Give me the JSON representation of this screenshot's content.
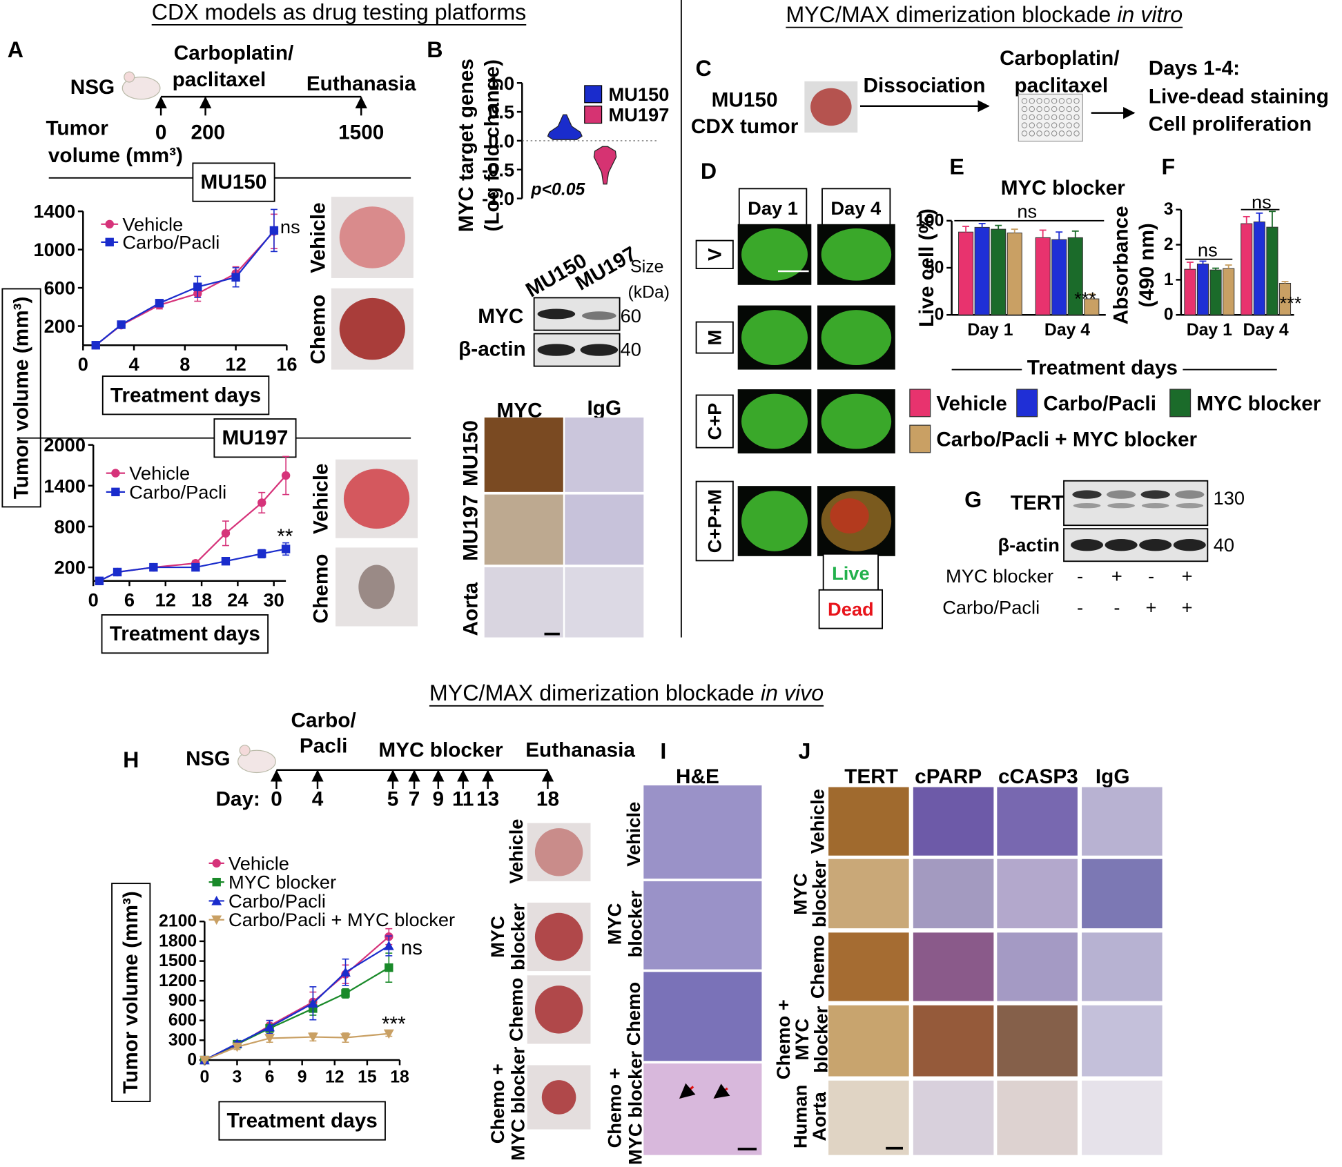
{
  "headers": [
    {
      "text": "CDX models as drug testing platforms"
    },
    {
      "text": "MYC/MAX dimerization blockade ",
      "emphasis": "in vitro"
    },
    {
      "text": "MYC/MAX dimerization blockade ",
      "emphasis": "in vivo"
    }
  ],
  "panel_letters": [
    "A",
    "B",
    "C",
    "D",
    "E",
    "F",
    "G",
    "H",
    "I",
    "J"
  ],
  "panel_a": {
    "mouse": "NSG",
    "drug": [
      "Carboplatin/",
      "paclitaxel"
    ],
    "end": "Euthanasia",
    "volume_label": [
      "Tumor",
      "volume (mm³)"
    ],
    "volumes": [
      0,
      200,
      1500
    ],
    "photo_labels": [
      [
        "Vehicle",
        "Chemo"
      ],
      [
        "Vehicle",
        "Chemo"
      ]
    ]
  },
  "panel_b": {
    "blot_lanes": [
      "MU150",
      "MU197"
    ],
    "size_label": [
      "Size",
      "(kDa)"
    ],
    "blot_rows": [
      "MYC",
      "β-actin"
    ],
    "sizes": [
      60,
      40
    ],
    "ihc_columns": [
      "MYC",
      "IgG"
    ],
    "ihc_rows": [
      "MU150",
      "MU197",
      "Aorta"
    ]
  },
  "panel_c": {
    "source": [
      "MU150",
      "CDX tumor"
    ],
    "step": "Dissociation",
    "drug": [
      "Carboplatin/",
      "paclitaxel"
    ],
    "readout": [
      "Days 1-4:",
      "Live-dead staining",
      "Cell proliferation"
    ]
  },
  "panel_d": {
    "columns": [
      "Day 1",
      "Day 4"
    ],
    "rows": [
      "V",
      "M",
      "C+P",
      "C+P+M"
    ],
    "stain": [
      "Live",
      "Dead"
    ]
  },
  "panel_g": {
    "rows": [
      "TERT",
      "β-actin"
    ],
    "sizes": [
      130,
      40
    ],
    "conditions": [
      {
        "name": "MYC blocker",
        "signs": [
          "-",
          "+",
          "-",
          "+"
        ]
      },
      {
        "name": "Carbo/Pacli",
        "signs": [
          "-",
          "-",
          "+",
          "+"
        ]
      }
    ]
  },
  "panel_h": {
    "mouse": "NSG",
    "drug": [
      "Carbo/",
      "Pacli"
    ],
    "blocker": "MYC blocker",
    "end": "Euthanasia",
    "day_label": "Day:",
    "days": [
      0,
      4,
      5,
      7,
      9,
      11,
      13,
      18
    ],
    "photo_labels": [
      [
        "Vehicle"
      ],
      [
        "MYC",
        "blocker"
      ],
      [
        "Chemo"
      ],
      [
        "Chemo +",
        "MYC blocker"
      ]
    ]
  },
  "panel_i": {
    "column": "H&E",
    "rows": [
      [
        "Vehicle"
      ],
      [
        "MYC",
        "blocker"
      ],
      [
        "Chemo"
      ],
      [
        "Chemo +",
        "MYC blocker"
      ]
    ]
  },
  "panel_j": {
    "columns": [
      "TERT",
      "cPARP",
      "cCASP3",
      "IgG"
    ],
    "rows": [
      [
        "Vehicle"
      ],
      [
        "MYC",
        "blocker"
      ],
      [
        "Chemo"
      ],
      [
        "Chemo +",
        "MYC",
        "blocker"
      ],
      [
        "Human",
        "Aorta"
      ]
    ]
  },
  "chart_data": [
    {
      "type": "line",
      "title": "MU150",
      "xlabel": "Treatment days",
      "ylabel": "Tumor volume (mm³)",
      "annotations": [
        "ns"
      ],
      "x": [
        1,
        3,
        6,
        9,
        12,
        15
      ],
      "xlim": [
        0,
        16
      ],
      "xticks": [
        0,
        4,
        8,
        12,
        16
      ],
      "ylim": [
        0,
        1400
      ],
      "yticks": [
        200,
        600,
        1000,
        1400
      ],
      "series": [
        {
          "name": "Vehicle",
          "color": "#d6337a",
          "marker": "circle",
          "values": [
            0,
            210,
            420,
            540,
            750,
            1190
          ],
          "errors": [
            0,
            20,
            40,
            80,
            70,
            180
          ]
        },
        {
          "name": "Carbo/Pacli",
          "color": "#1a2ccc",
          "marker": "square",
          "values": [
            0,
            215,
            440,
            610,
            710,
            1200
          ],
          "errors": [
            0,
            20,
            30,
            110,
            100,
            220
          ]
        }
      ]
    },
    {
      "type": "line",
      "title": "MU197",
      "xlabel": "Treatment days",
      "annotations": [
        "**"
      ],
      "x": [
        1,
        4,
        10,
        17,
        22,
        28,
        32
      ],
      "xlim": [
        0,
        32
      ],
      "xticks": [
        0,
        6,
        12,
        18,
        24,
        30
      ],
      "ylim": [
        0,
        2000
      ],
      "yticks": [
        200,
        800,
        1400,
        2000
      ],
      "series": [
        {
          "name": "Vehicle",
          "color": "#d6337a",
          "marker": "circle",
          "values": [
            0,
            130,
            200,
            260,
            700,
            1150,
            1550
          ],
          "errors": [
            0,
            20,
            20,
            40,
            180,
            150,
            280
          ]
        },
        {
          "name": "Carbo/Pacli",
          "color": "#1a2ccc",
          "marker": "square",
          "values": [
            0,
            130,
            200,
            200,
            290,
            400,
            470
          ],
          "errors": [
            0,
            20,
            20,
            20,
            30,
            60,
            90
          ]
        }
      ]
    },
    {
      "type": "violin",
      "ylabel": [
        "MYC target genes",
        "(Log fold change)"
      ],
      "annotations": [
        "p<0.05"
      ],
      "ylim": [
        -1,
        1
      ],
      "yticks": [
        {
          "value": 1,
          "label": "1.0"
        },
        {
          "value": 0.5,
          "label": "0.5"
        },
        {
          "value": 0,
          "label": "0.0"
        },
        {
          "value": -0.5,
          "label": "-0.5"
        },
        {
          "value": -1,
          "label": "-1.0"
        }
      ],
      "series": [
        {
          "name": "MU150",
          "color": "#1a2ccc"
        },
        {
          "name": "MU197",
          "color": "#d63372"
        }
      ]
    },
    {
      "type": "bar",
      "title": "MYC blocker",
      "xlabel": "Treatment days",
      "ylabel": [
        "Live cell (%)"
      ],
      "annotations": [
        "ns",
        "***"
      ],
      "categories": [
        "Day 1",
        "Day 4"
      ],
      "ylim": [
        0,
        100
      ],
      "yticks": [
        0,
        50,
        100
      ],
      "series": [
        {
          "name": "Vehicle",
          "color": "#e8336e",
          "values": [
            88,
            82
          ],
          "errors": [
            6,
            8
          ]
        },
        {
          "name": "Carbo/Pacli",
          "color": "#1f2fd6",
          "values": [
            93,
            80
          ],
          "errors": [
            4,
            8
          ]
        },
        {
          "name": "MYC blocker",
          "color": "#1b6b2a",
          "values": [
            91,
            82
          ],
          "errors": [
            4,
            7
          ]
        },
        {
          "name": "Carbo/Pacli + MYC blocker",
          "color": "#c9a064",
          "values": [
            87,
            17
          ],
          "errors": [
            4,
            5
          ]
        }
      ]
    },
    {
      "type": "bar",
      "ylabel": [
        "Absorbance",
        "(490 nm)"
      ],
      "annotations": [
        "ns",
        "ns",
        "***"
      ],
      "categories": [
        "Day 1",
        "Day 4"
      ],
      "ylim": [
        0,
        3
      ],
      "yticks": [
        0,
        1,
        2,
        3
      ],
      "series": [
        {
          "color": "#e8336e",
          "values": [
            1.3,
            2.6
          ],
          "errors": [
            0.2,
            0.2
          ]
        },
        {
          "color": "#1f2fd6",
          "values": [
            1.45,
            2.65
          ],
          "errors": [
            0.08,
            0.25
          ]
        },
        {
          "color": "#1b6b2a",
          "values": [
            1.28,
            2.5
          ],
          "errors": [
            0.05,
            0.45
          ]
        },
        {
          "color": "#c9a064",
          "values": [
            1.32,
            0.9
          ],
          "errors": [
            0.1,
            0.05
          ]
        }
      ]
    },
    {
      "type": "line",
      "xlabel": "Treatment days",
      "ylabel": "Tumor volume (mm³)",
      "annotations": [
        "ns",
        "***"
      ],
      "x": [
        0,
        3,
        6,
        10,
        13,
        17
      ],
      "xlim": [
        0,
        18
      ],
      "xticks": [
        0,
        3,
        6,
        9,
        12,
        15,
        18
      ],
      "ylim": [
        0,
        2100
      ],
      "yticks": [
        0,
        300,
        600,
        900,
        1200,
        1500,
        1800,
        2100
      ],
      "series": [
        {
          "name": "Vehicle",
          "color": "#d6337a",
          "marker": "circle",
          "values": [
            0,
            230,
            520,
            880,
            1300,
            1870
          ],
          "errors": [
            0,
            40,
            80,
            150,
            140,
            120
          ]
        },
        {
          "name": "MYC blocker",
          "color": "#1a8a2a",
          "marker": "square",
          "values": [
            0,
            240,
            480,
            780,
            1010,
            1400
          ],
          "errors": [
            0,
            40,
            60,
            100,
            70,
            220
          ]
        },
        {
          "name": "Carbo/Pacli",
          "color": "#1a2ccc",
          "marker": "triangle",
          "values": [
            0,
            250,
            500,
            860,
            1330,
            1730
          ],
          "errors": [
            0,
            30,
            100,
            250,
            200,
            150
          ]
        },
        {
          "name": "Carbo/Pacli + MYC blocker",
          "color": "#c9a064",
          "marker": "triangle-down",
          "values": [
            0,
            200,
            330,
            350,
            340,
            400
          ],
          "errors": [
            0,
            40,
            60,
            60,
            70,
            40
          ]
        }
      ]
    }
  ]
}
